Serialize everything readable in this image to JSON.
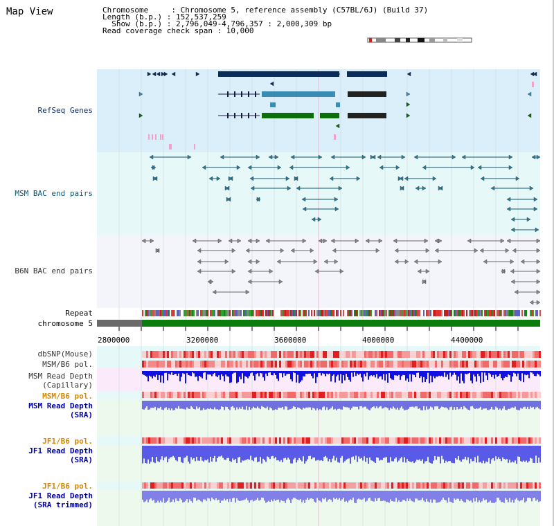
{
  "title": "Map View",
  "info": {
    "line1": "Chromosome     : Chromosome 5, reference assembly (C57BL/6J) (Build 37)",
    "line2": "Length (b.p.) : 152,537,259",
    "line3": "  Show (b.p.) : 2,796,049-4,796,357 : 2,000,309 bp",
    "line4": "Read coverage check span : 10,000"
  },
  "tracks": {
    "refseq": "RefSeq Genes",
    "msm_bac": "MSM BAC end pairs",
    "b6n_bac": "B6N BAC end pairs",
    "repeat": "Repeat",
    "chromosome": "chromosome 5",
    "dbsnp": "dbSNP(Mouse)",
    "msm_b6_pol": "MSM/B6 pol.",
    "msm_depth_cap_1": "MSM Read Depth",
    "msm_depth_cap_2": "(Capillary)",
    "msm_b6_pol_2": "MSM/B6 pol.",
    "msm_depth_sra_1": "MSM Read Depth",
    "msm_depth_sra_2": "(SRA)",
    "jf1_b6_pol": "JF1/B6 pol.",
    "jf1_depth_sra_1": "JF1 Read Depth",
    "jf1_depth_sra_2": "(SRA)",
    "jf1_b6_pol_2": "JF1/B6 pol.",
    "jf1_depth_trim_1": "JF1 Read Depth",
    "jf1_depth_trim_2": "(SRA trimmed)"
  },
  "axis": {
    "ticks": [
      "2800000",
      "3200000",
      "3600000",
      "4000000",
      "4400000"
    ]
  },
  "colors": {
    "refseq_bg": "#dbeffb",
    "msm_bg": "#e6f8f8",
    "b6n_bg": "#f4f5fa",
    "gene_navy": "#0a2c5c",
    "gene_blue": "#3a8cb4",
    "gene_green": "#0b6e0b",
    "chrom_green": "#0c7c0c",
    "depth_blue": "#2020f0"
  }
}
